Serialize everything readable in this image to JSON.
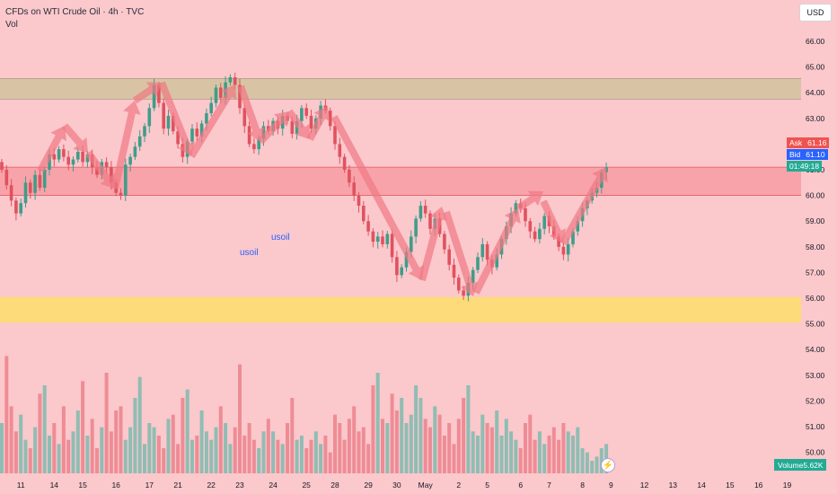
{
  "header": {
    "title": "CFDs on WTI Crude Oil · 4h · TVC",
    "indicator": "Vol"
  },
  "currency_button": "USD",
  "price_tags": {
    "ask_label": "Ask",
    "ask_value": "61.16",
    "bid_label": "Bid",
    "bid_value": "61.10",
    "countdown": "01:49:18",
    "ask_color": "#ef5350",
    "bid_color": "#2962ff",
    "countdown_color": "#22ab94"
  },
  "volume_badge": {
    "label": "Volume",
    "value": "5.62K"
  },
  "annotations": [
    "usoil",
    "usoil"
  ],
  "lightning_icon": "lightning-icon",
  "colors": {
    "up": "#3f9d8a",
    "down": "#e0525f",
    "vol_up": "#8fbdb3",
    "vol_down": "#ee8c95",
    "arrow": "#f07883",
    "background": "#fbc8cc"
  },
  "chart_data": {
    "type": "candlestick",
    "title": "CFDs on WTI Crude Oil · 4h · TVC",
    "ylim": [
      49.5,
      66.7
    ],
    "y_ticks": [
      "66.00",
      "65.00",
      "64.00",
      "63.00",
      "62.00",
      "61.00",
      "60.00",
      "59.00",
      "58.00",
      "57.00",
      "56.00",
      "55.00",
      "54.00",
      "53.00",
      "52.00",
      "51.00",
      "50.00"
    ],
    "x_ticks": [
      {
        "label": "11",
        "i": 4
      },
      {
        "label": "14",
        "i": 11
      },
      {
        "label": "15",
        "i": 17
      },
      {
        "label": "16",
        "i": 24
      },
      {
        "label": "17",
        "i": 31
      },
      {
        "label": "21",
        "i": 37
      },
      {
        "label": "22",
        "i": 44
      },
      {
        "label": "23",
        "i": 50
      },
      {
        "label": "24",
        "i": 57
      },
      {
        "label": "25",
        "i": 64
      },
      {
        "label": "28",
        "i": 70
      },
      {
        "label": "29",
        "i": 77
      },
      {
        "label": "30",
        "i": 83
      },
      {
        "label": "May",
        "i": 89
      },
      {
        "label": "2",
        "i": 96
      },
      {
        "label": "5",
        "i": 102
      },
      {
        "label": "6",
        "i": 109
      },
      {
        "label": "7",
        "i": 115
      },
      {
        "label": "8",
        "i": 122
      },
      {
        "label": "9",
        "i": 128
      },
      {
        "label": "12",
        "i": 135
      },
      {
        "label": "13",
        "i": 141
      },
      {
        "label": "14",
        "i": 147
      },
      {
        "label": "15",
        "i": 153
      },
      {
        "label": "16",
        "i": 159
      },
      {
        "label": "19",
        "i": 165
      }
    ],
    "grid": false,
    "zones": [
      {
        "name": "resistance",
        "from": 63.75,
        "to": 64.55,
        "color": "#d8c4a4"
      },
      {
        "name": "mid",
        "from": 60.0,
        "to": 61.1,
        "color": "#f7a3a9"
      },
      {
        "name": "support",
        "from": 55.05,
        "to": 56.05,
        "color": "#fddb7a"
      }
    ],
    "closes": [
      61.0,
      60.4,
      59.8,
      59.3,
      59.7,
      60.5,
      60.1,
      60.8,
      60.3,
      61.0,
      61.6,
      61.4,
      61.8,
      61.5,
      61.2,
      61.4,
      61.7,
      61.3,
      61.6,
      61.1,
      60.8,
      61.3,
      61.1,
      60.5,
      60.1,
      60.0,
      61.2,
      61.5,
      61.9,
      62.3,
      62.7,
      63.4,
      64.3,
      63.6,
      62.6,
      63.1,
      62.5,
      62.0,
      61.5,
      62.1,
      62.6,
      62.3,
      62.8,
      63.2,
      63.6,
      64.2,
      63.8,
      64.4,
      64.6,
      64.3,
      63.4,
      62.7,
      62.0,
      61.8,
      62.2,
      62.7,
      62.5,
      62.9,
      62.6,
      63.1,
      62.9,
      62.4,
      62.9,
      63.4,
      63.1,
      62.6,
      63.0,
      63.5,
      63.3,
      62.7,
      62.0,
      61.5,
      61.0,
      60.5,
      60.0,
      59.6,
      59.0,
      58.6,
      58.2,
      58.4,
      58.1,
      58.5,
      57.6,
      56.9,
      57.2,
      57.8,
      58.4,
      59.1,
      59.6,
      59.3,
      58.7,
      59.1,
      58.5,
      57.9,
      57.3,
      56.8,
      56.3,
      56.1,
      56.6,
      57.1,
      57.6,
      58.1,
      57.5,
      57.2,
      57.7,
      58.3,
      58.8,
      59.3,
      59.7,
      59.5,
      59.0,
      58.6,
      58.3,
      58.7,
      59.2,
      58.8,
      58.4,
      58.0,
      57.7,
      58.1,
      58.6,
      59.0,
      59.5,
      59.8,
      60.1,
      60.3,
      60.9,
      61.1
    ],
    "volumes": [
      1.2,
      2.8,
      1.6,
      1.0,
      1.4,
      0.8,
      0.6,
      1.1,
      1.9,
      2.1,
      0.9,
      1.2,
      0.7,
      1.6,
      0.8,
      1.0,
      1.5,
      2.2,
      0.9,
      1.3,
      0.6,
      1.1,
      2.4,
      1.0,
      1.5,
      1.6,
      0.8,
      1.1,
      1.8,
      2.3,
      0.7,
      1.2,
      1.1,
      0.9,
      0.6,
      1.3,
      1.4,
      0.7,
      1.8,
      2.0,
      0.8,
      0.9,
      1.5,
      1.0,
      0.8,
      1.1,
      1.6,
      1.2,
      0.7,
      1.1,
      2.6,
      0.9,
      1.2,
      0.8,
      0.6,
      1.0,
      1.3,
      1.0,
      0.8,
      0.7,
      1.2,
      1.8,
      0.8,
      0.9,
      0.6,
      0.8,
      1.0,
      0.7,
      0.9,
      0.5,
      1.4,
      1.2,
      0.8,
      1.3,
      1.6,
      1.0,
      1.1,
      0.7,
      2.1,
      2.4,
      1.3,
      1.2,
      1.9,
      1.5,
      1.8,
      1.2,
      1.4,
      2.1,
      1.8,
      1.3,
      1.1,
      1.6,
      1.4,
      0.9,
      1.2,
      0.7,
      1.3,
      1.8,
      2.1,
      1.0,
      0.9,
      1.4,
      1.2,
      1.1,
      1.5,
      0.9,
      1.3,
      1.0,
      0.8,
      0.6,
      1.2,
      1.4,
      0.8,
      1.0,
      0.7,
      0.9,
      1.1,
      0.8,
      1.2,
      1.0,
      0.9,
      1.1,
      0.6,
      0.5,
      0.3,
      0.4,
      0.6,
      0.7
    ],
    "volume_max": 3.0
  }
}
